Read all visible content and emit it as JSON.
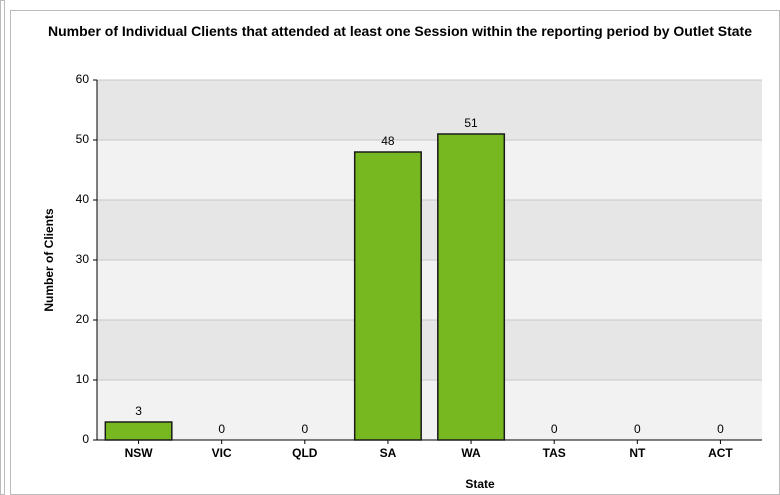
{
  "chart_data": {
    "type": "bar",
    "title": "Number of Individual Clients that attended at least one Session within the reporting period by Outlet State",
    "categories": [
      "NSW",
      "VIC",
      "QLD",
      "SA",
      "WA",
      "TAS",
      "NT",
      "ACT"
    ],
    "values": [
      3,
      0,
      0,
      48,
      51,
      0,
      0,
      0
    ],
    "color": "#77b820",
    "x_label": "State",
    "y_label": "Number of Clients",
    "ylim": [
      0,
      60
    ],
    "yticks": [
      0,
      10,
      20,
      30,
      40,
      50,
      60
    ],
    "grid": true
  }
}
